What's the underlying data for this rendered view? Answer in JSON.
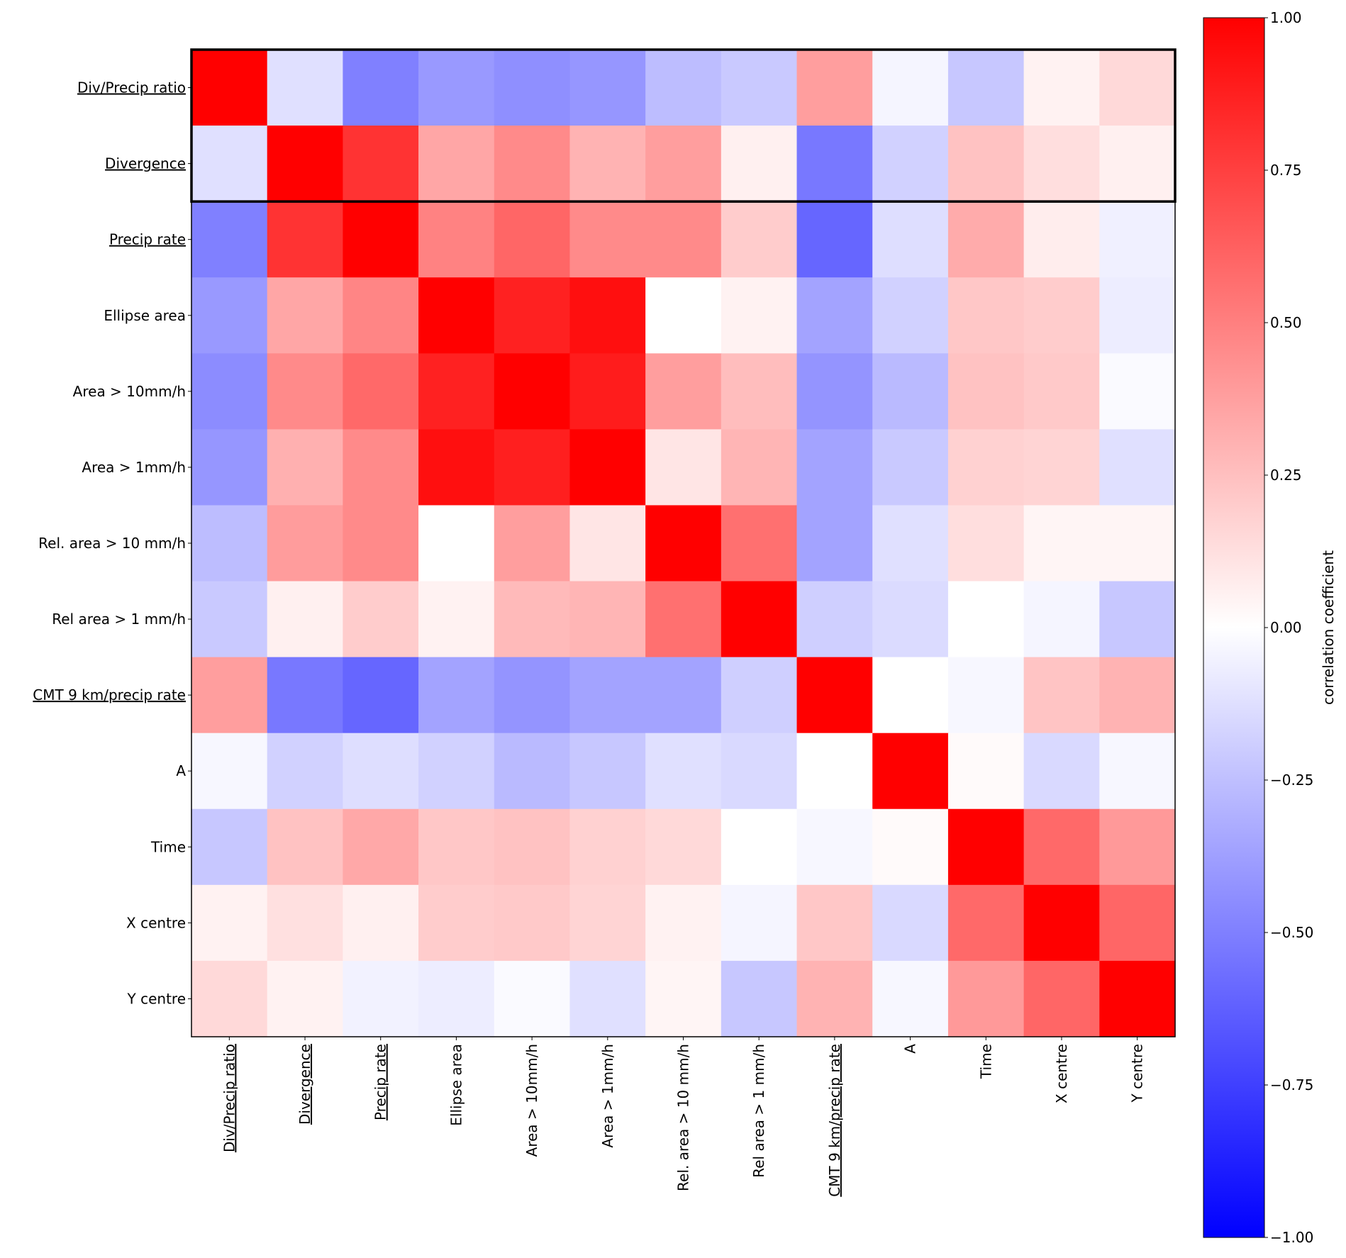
{
  "chart_data": {
    "type": "heatmap",
    "title": "",
    "colormap": "bwr",
    "vmin": -1.0,
    "vmax": 1.0,
    "colorbar": {
      "label": "correlation coefficient",
      "ticks": [
        1.0,
        0.75,
        0.5,
        0.25,
        0.0,
        -0.25,
        -0.5,
        -0.75,
        -1.0
      ],
      "tick_labels": [
        "1.00",
        "0.75",
        "0.50",
        "0.25",
        "0.00",
        "−0.25",
        "−0.50",
        "−0.75",
        "−1.00"
      ],
      "placement": "right"
    },
    "labels": [
      "Div/Precip ratio",
      "Divergence",
      "Precip rate",
      "Ellipse area",
      "Area > 10mm/h",
      "Area > 1mm/h",
      "Rel. area > 10 mm/h",
      "Rel area > 1 mm/h",
      "CMT 9 km/precip rate",
      "A",
      "Time",
      "X centre",
      "Y centre"
    ],
    "underlined_labels": [
      "Div/Precip ratio",
      "Divergence",
      "Precip rate",
      "CMT 9 km/precip rate"
    ],
    "highlighted_rows": [
      "Div/Precip ratio",
      "Divergence"
    ],
    "values": [
      [
        1.0,
        -0.12,
        -0.5,
        -0.4,
        -0.44,
        -0.41,
        -0.26,
        -0.21,
        0.38,
        -0.04,
        -0.22,
        0.05,
        0.15
      ],
      [
        -0.12,
        1.0,
        0.8,
        0.35,
        0.46,
        0.3,
        0.38,
        0.06,
        -0.53,
        -0.18,
        0.24,
        0.13,
        0.06
      ],
      [
        -0.5,
        0.8,
        1.0,
        0.49,
        0.6,
        0.46,
        0.46,
        0.2,
        -0.6,
        -0.13,
        0.33,
        0.07,
        -0.06
      ],
      [
        -0.4,
        0.35,
        0.48,
        1.0,
        0.87,
        0.94,
        0.0,
        0.05,
        -0.36,
        -0.18,
        0.22,
        0.2,
        -0.07
      ],
      [
        -0.45,
        0.46,
        0.59,
        0.87,
        1.0,
        0.89,
        0.38,
        0.26,
        -0.42,
        -0.27,
        0.24,
        0.21,
        -0.02
      ],
      [
        -0.41,
        0.31,
        0.46,
        0.94,
        0.88,
        1.0,
        0.1,
        0.29,
        -0.36,
        -0.21,
        0.18,
        0.17,
        -0.12
      ],
      [
        -0.26,
        0.39,
        0.46,
        0.0,
        0.38,
        0.1,
        1.0,
        0.56,
        -0.36,
        -0.12,
        0.13,
        0.04,
        0.04
      ],
      [
        -0.21,
        0.06,
        0.2,
        0.05,
        0.27,
        0.29,
        0.56,
        1.0,
        -0.19,
        -0.14,
        0.0,
        -0.04,
        -0.22
      ],
      [
        0.38,
        -0.53,
        -0.6,
        -0.36,
        -0.42,
        -0.36,
        -0.36,
        -0.19,
        1.0,
        0.0,
        -0.03,
        0.23,
        0.3
      ],
      [
        -0.03,
        -0.18,
        -0.13,
        -0.18,
        -0.27,
        -0.22,
        -0.12,
        -0.15,
        0.0,
        1.0,
        0.02,
        -0.15,
        -0.03
      ],
      [
        -0.22,
        0.24,
        0.34,
        0.22,
        0.24,
        0.18,
        0.15,
        0.0,
        -0.03,
        0.02,
        1.0,
        0.59,
        0.4
      ],
      [
        0.05,
        0.12,
        0.06,
        0.2,
        0.21,
        0.17,
        0.05,
        -0.04,
        0.22,
        -0.15,
        0.59,
        1.0,
        0.6
      ],
      [
        0.15,
        0.05,
        -0.05,
        -0.07,
        -0.02,
        -0.12,
        0.04,
        -0.22,
        0.3,
        -0.03,
        0.4,
        0.6,
        1.0
      ]
    ],
    "xlabel": "",
    "ylabel": "",
    "grid": false
  }
}
